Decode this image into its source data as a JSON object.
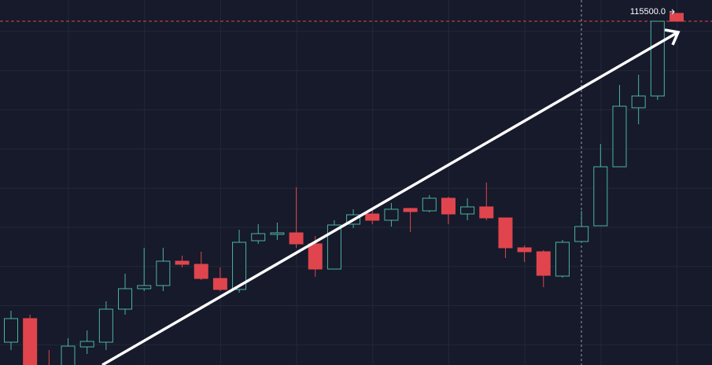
{
  "chart_data": {
    "type": "candlestick",
    "open": [
      107340,
      107940,
      106640,
      106540,
      107220,
      107340,
      108180,
      108700,
      108780,
      109400,
      109320,
      108960,
      108680,
      109920,
      110080,
      110120,
      109840,
      109200,
      110340,
      110600,
      110440,
      110740,
      110680,
      111000,
      110600,
      110780,
      110500,
      109740,
      109640,
      109020,
      109900,
      110300,
      111800,
      113300,
      113600,
      115700
    ],
    "high": [
      108140,
      108040,
      107140,
      107440,
      107640,
      108380,
      109080,
      109740,
      109740,
      109540,
      109640,
      109240,
      110200,
      110340,
      110380,
      111280,
      110040,
      110440,
      110720,
      110740,
      110880,
      110760,
      111080,
      111040,
      111000,
      111400,
      110500,
      109800,
      109680,
      109940,
      110680,
      112380,
      113880,
      114140,
      115500,
      115700
    ],
    "low": [
      107140,
      106440,
      106340,
      106440,
      107040,
      107140,
      108040,
      108640,
      108640,
      109240,
      108920,
      108640,
      108600,
      109840,
      109940,
      109740,
      109000,
      109200,
      110240,
      110340,
      110280,
      110140,
      110640,
      110340,
      110440,
      110440,
      109480,
      109380,
      108740,
      108980,
      109880,
      110300,
      111800,
      112880,
      113500,
      115500
    ],
    "close": [
      107940,
      106540,
      106440,
      107240,
      107360,
      108180,
      108700,
      108780,
      109400,
      109320,
      108960,
      108680,
      109880,
      110100,
      110120,
      109840,
      109200,
      110320,
      110580,
      110440,
      110720,
      110660,
      111000,
      110600,
      110780,
      110500,
      109740,
      109640,
      109040,
      109880,
      110280,
      111800,
      113340,
      113600,
      115500,
      115500
    ],
    "up_color": "#4db3a2",
    "down_color": "#e0454d",
    "ylim": [
      106760,
      116040
    ],
    "grid": true,
    "price_label": {
      "value": 115500,
      "label": "115500.0"
    },
    "price_line_color": "#e0454d"
  }
}
